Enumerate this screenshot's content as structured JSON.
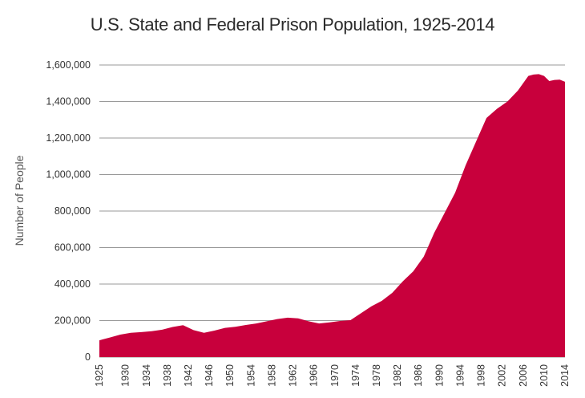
{
  "chart_data": {
    "type": "area",
    "title": "U.S. State and Federal Prison Population, 1925-2014",
    "xlabel": "",
    "ylabel": "Number of People",
    "ylim": [
      0,
      1600000
    ],
    "grid": true,
    "color": "#c8003c",
    "y_ticks": [
      0,
      200000,
      400000,
      600000,
      800000,
      1000000,
      1200000,
      1400000,
      1600000
    ],
    "y_tick_labels": [
      "0",
      "200,000",
      "400,000",
      "600,000",
      "800,000",
      "1,000,000",
      "1,200,000",
      "1,400,000",
      "1,600,000"
    ],
    "x_tick_labels": [
      "1925",
      "1930",
      "1934",
      "1938",
      "1942",
      "1946",
      "1950",
      "1954",
      "1958",
      "1962",
      "1966",
      "1970",
      "1974",
      "1978",
      "1982",
      "1986",
      "1990",
      "1994",
      "1998",
      "2002",
      "2006",
      "2010",
      "2014"
    ],
    "x_ticks": [
      1925,
      1930,
      1934,
      1938,
      1942,
      1946,
      1950,
      1954,
      1958,
      1962,
      1966,
      1970,
      1974,
      1978,
      1982,
      1986,
      1990,
      1994,
      1998,
      2002,
      2006,
      2010,
      2014
    ],
    "x": [
      1925,
      1927,
      1929,
      1931,
      1933,
      1935,
      1937,
      1939,
      1941,
      1943,
      1945,
      1947,
      1949,
      1951,
      1953,
      1955,
      1957,
      1959,
      1961,
      1963,
      1965,
      1967,
      1969,
      1971,
      1973,
      1975,
      1977,
      1979,
      1981,
      1983,
      1985,
      1987,
      1989,
      1991,
      1993,
      1995,
      1997,
      1999,
      2001,
      2003,
      2005,
      2007,
      2008,
      2009,
      2010,
      2011,
      2012,
      2013,
      2014
    ],
    "values": [
      92000,
      107000,
      123000,
      133000,
      137000,
      142000,
      150000,
      165000,
      175000,
      148000,
      133000,
      145000,
      160000,
      166000,
      176000,
      184000,
      196000,
      208000,
      216000,
      212000,
      196000,
      184000,
      190000,
      198000,
      202000,
      240000,
      278000,
      308000,
      352000,
      415000,
      470000,
      550000,
      680000,
      790000,
      900000,
      1050000,
      1180000,
      1310000,
      1360000,
      1400000,
      1460000,
      1540000,
      1548000,
      1550000,
      1540000,
      1512000,
      1518000,
      1520000,
      1508000
    ]
  }
}
